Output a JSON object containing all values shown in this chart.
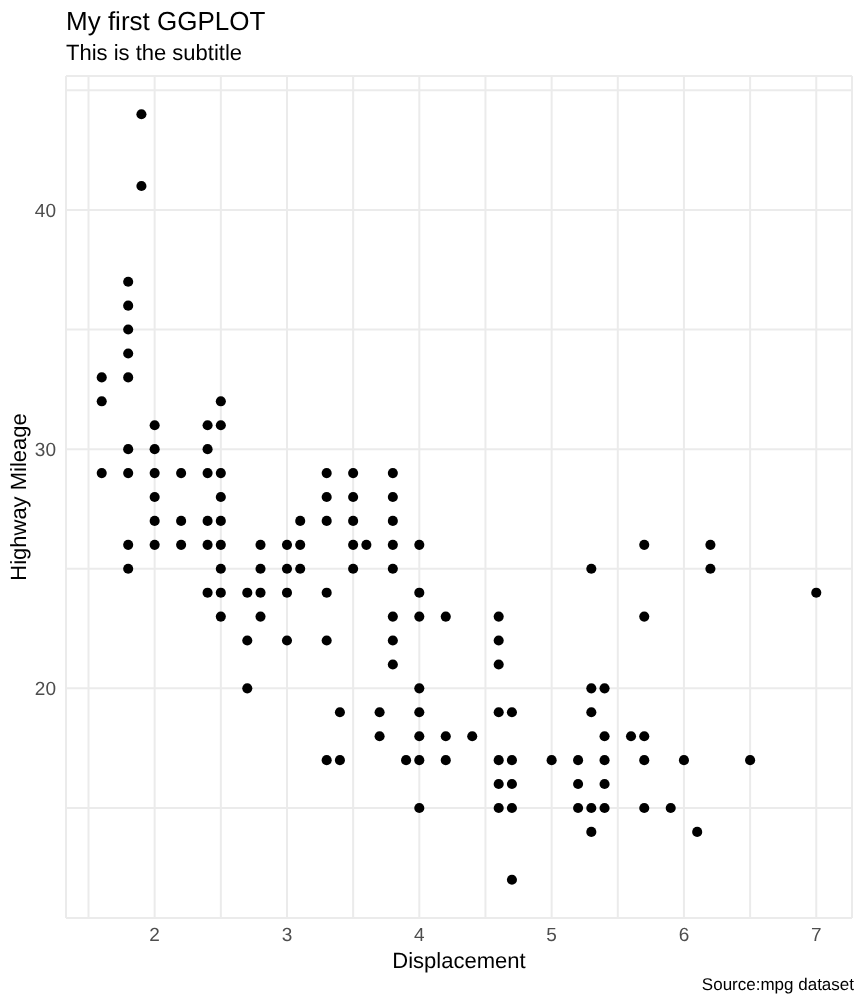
{
  "chart_data": {
    "type": "scatter",
    "title": "My first GGPLOT",
    "subtitle": "This is the subtitle",
    "xlabel": "Displacement",
    "ylabel": "Highway Mileage",
    "annotations": [
      "Source:mpg dataset"
    ],
    "x": [
      1.6,
      1.6,
      1.6,
      1.8,
      1.8,
      1.8,
      1.8,
      1.8,
      1.8,
      1.8,
      1.8,
      1.8,
      1.9,
      1.9,
      2.0,
      2.0,
      2.0,
      2.0,
      2.0,
      2.0,
      2.2,
      2.2,
      2.2,
      2.4,
      2.4,
      2.4,
      2.4,
      2.4,
      2.4,
      2.5,
      2.5,
      2.5,
      2.5,
      2.5,
      2.5,
      2.5,
      2.5,
      2.5,
      2.7,
      2.7,
      2.7,
      2.8,
      2.8,
      2.8,
      2.8,
      3.0,
      3.0,
      3.0,
      3.0,
      3.1,
      3.1,
      3.1,
      3.3,
      3.3,
      3.3,
      3.3,
      3.3,
      3.3,
      3.4,
      3.4,
      3.5,
      3.5,
      3.5,
      3.5,
      3.5,
      3.6,
      3.7,
      3.7,
      3.8,
      3.8,
      3.8,
      3.8,
      3.8,
      3.8,
      3.8,
      3.8,
      3.9,
      4.0,
      4.0,
      4.0,
      4.0,
      4.0,
      4.0,
      4.0,
      4.0,
      4.2,
      4.2,
      4.2,
      4.4,
      4.6,
      4.6,
      4.6,
      4.6,
      4.6,
      4.6,
      4.6,
      4.7,
      4.7,
      4.7,
      4.7,
      4.7,
      5.0,
      5.2,
      5.2,
      5.2,
      5.3,
      5.3,
      5.3,
      5.3,
      5.3,
      5.4,
      5.4,
      5.4,
      5.4,
      5.4,
      5.6,
      5.7,
      5.7,
      5.7,
      5.7,
      5.7,
      5.9,
      6.0,
      6.1,
      6.2,
      6.2,
      6.5,
      7.0
    ],
    "series": [
      {
        "color": "#000000",
        "values": [
          33,
          32,
          29,
          37,
          36,
          35,
          34,
          33,
          30,
          29,
          26,
          25,
          44,
          41,
          31,
          30,
          29,
          28,
          27,
          26,
          29,
          27,
          26,
          31,
          30,
          29,
          27,
          26,
          24,
          32,
          31,
          29,
          28,
          27,
          26,
          25,
          24,
          23,
          24,
          22,
          20,
          26,
          25,
          24,
          23,
          26,
          25,
          24,
          22,
          27,
          26,
          25,
          29,
          28,
          27,
          24,
          22,
          17,
          19,
          17,
          29,
          28,
          27,
          26,
          25,
          26,
          19,
          18,
          29,
          28,
          27,
          26,
          25,
          23,
          22,
          21,
          17,
          26,
          24,
          23,
          20,
          19,
          18,
          17,
          15,
          23,
          18,
          17,
          18,
          23,
          22,
          21,
          19,
          17,
          16,
          15,
          19,
          17,
          16,
          15,
          12,
          17,
          17,
          16,
          15,
          25,
          20,
          19,
          15,
          14,
          20,
          18,
          17,
          16,
          15,
          18,
          26,
          23,
          18,
          17,
          15,
          15,
          17,
          14,
          26,
          25,
          17,
          24
        ]
      }
    ],
    "xlim": [
      1.33,
      7.27
    ],
    "ylim": [
      10.4,
      45.6
    ],
    "xticks": [
      {
        "value": 1.5,
        "label": null
      },
      2,
      {
        "value": 2.5,
        "label": null
      },
      3,
      {
        "value": 3.5,
        "label": null
      },
      4,
      {
        "value": 4.5,
        "label": null
      },
      5,
      {
        "value": 5.5,
        "label": null
      },
      6,
      {
        "value": 6.5,
        "label": null
      },
      7
    ],
    "yticks": [
      {
        "value": 15,
        "label": null
      },
      20,
      {
        "value": 25,
        "label": null
      },
      30,
      {
        "value": 35,
        "label": null
      },
      40,
      {
        "value": 45,
        "label": null
      }
    ],
    "grid": true,
    "marker": "circle"
  }
}
